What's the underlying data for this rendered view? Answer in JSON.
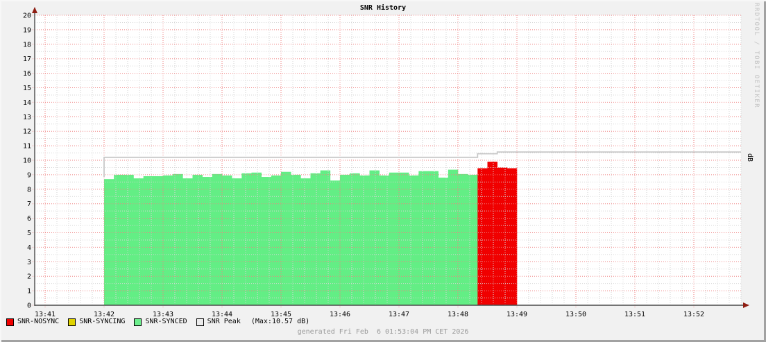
{
  "title": "SNR History",
  "watermark": "RRDTOOL / TOBI OETIKER",
  "y_axis_right_label": "dB",
  "footer": "generated Fri Feb  6 01:53:04 PM CET 2026",
  "legend": {
    "items": [
      {
        "label": "SNR-NOSYNC",
        "color": "#f00000"
      },
      {
        "label": "SNR-SYNCING",
        "color": "#e0d300"
      },
      {
        "label": "SNR-SYNCED",
        "color": "#6cef8d"
      },
      {
        "label": "SNR Peak",
        "color": "#ebebeb"
      }
    ],
    "max_label": "(Max:10.57 dB)"
  },
  "colors": {
    "bg": "#f1f1f1",
    "plot_bg": "#ffffff",
    "grid_major": "#ef8181",
    "grid_minor": "#d6d6d6",
    "axis": "#4a4a4a",
    "arrow": "#8f1d12",
    "watermark": "#c3c3c3",
    "footer_text": "#9b9b9b"
  },
  "chart_data": {
    "type": "bar",
    "title": "SNR History",
    "xlabel": "",
    "ylabel": "dB",
    "ylim": [
      0,
      20
    ],
    "grid": true,
    "legend_position": "bottom",
    "x_ticks": [
      "13:41",
      "13:42",
      "13:43",
      "13:44",
      "13:45",
      "13:46",
      "13:47",
      "13:48",
      "13:49",
      "13:50",
      "13:51",
      "13:52"
    ],
    "y_ticks": [
      0,
      1,
      2,
      3,
      4,
      5,
      6,
      7,
      8,
      9,
      10,
      11,
      12,
      13,
      14,
      15,
      16,
      17,
      18,
      19,
      20
    ],
    "bar_interval_seconds": 10,
    "series": [
      {
        "name": "SNR-SYNCED",
        "color": "#63ee85",
        "start": "13:42:00",
        "values": [
          8.7,
          9.0,
          9.0,
          8.75,
          8.9,
          8.9,
          8.95,
          9.05,
          8.75,
          9.0,
          8.85,
          9.05,
          8.95,
          8.75,
          9.1,
          9.15,
          8.85,
          8.95,
          9.2,
          9.0,
          8.75,
          9.1,
          9.3,
          8.6,
          9.0,
          9.1,
          8.95,
          9.3,
          8.95,
          9.15,
          9.15,
          8.95,
          9.25,
          9.25,
          8.8,
          9.35,
          9.05,
          9.0
        ]
      },
      {
        "name": "SNR-NOSYNC",
        "color": "#f00000",
        "start": "13:48:20",
        "values": [
          9.45,
          9.9,
          9.5,
          9.45
        ]
      },
      {
        "name": "SNR-SYNCING",
        "color": "#e0d300",
        "start": null,
        "values": []
      }
    ],
    "peak_line": {
      "name": "SNR Peak",
      "color": "#c9c9c9",
      "max": 10.57,
      "points": [
        [
          "13:42:00",
          8.85
        ],
        [
          "13:42:00",
          10.2
        ],
        [
          "13:48:20",
          10.2
        ],
        [
          "13:48:20",
          10.45
        ],
        [
          "13:48:40",
          10.45
        ],
        [
          "13:48:40",
          10.57
        ],
        [
          "13:52:48",
          10.57
        ]
      ]
    }
  }
}
